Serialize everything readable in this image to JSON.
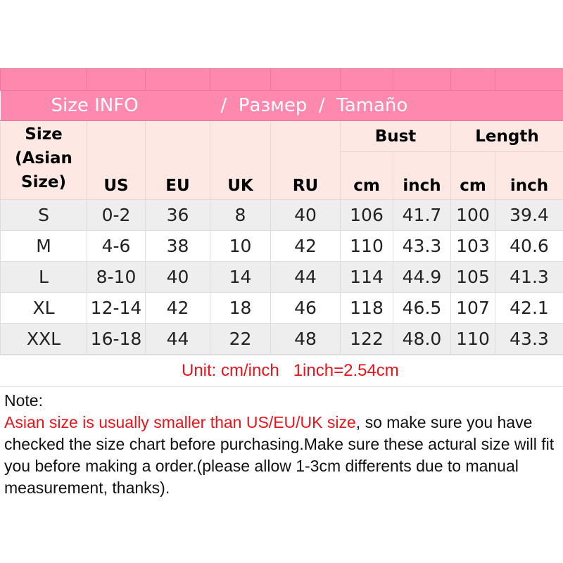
{
  "title": {
    "left": "Size INFO",
    "mid": "/  Размер  /  Tamaño"
  },
  "headers": {
    "size": "Size (Asian Size)",
    "us": "US",
    "eu": "EU",
    "uk": "UK",
    "ru": "RU",
    "bust": "Bust",
    "length": "Length",
    "cm": "cm",
    "inch": "inch"
  },
  "rows": [
    [
      "S",
      "0-2",
      "36",
      "8",
      "40",
      "106",
      "41.7",
      "100",
      "39.4"
    ],
    [
      "M",
      "4-6",
      "38",
      "10",
      "42",
      "110",
      "43.3",
      "103",
      "40.6"
    ],
    [
      "L",
      "8-10",
      "40",
      "14",
      "44",
      "114",
      "44.9",
      "105",
      "41.3"
    ],
    [
      "XL",
      "12-14",
      "42",
      "18",
      "46",
      "118",
      "46.5",
      "107",
      "42.1"
    ],
    [
      "XXL",
      "16-18",
      "44",
      "22",
      "48",
      "122",
      "48.0",
      "110",
      "43.3"
    ]
  ],
  "unit": "Unit: cm/inch   1inch=2.54cm",
  "note": {
    "label": "Note:",
    "warning": "Asian size is usually smaller than US/EU/UK size",
    "rest": ", so make sure you have checked the size chart before purchasing.Make sure these actural size will fit you before making a order.(please allow 1-3cm differents due to manual measurement, thanks)."
  },
  "colors": {
    "pink": "#ff88ae",
    "header_bg": "#fde8e4",
    "warning_red": "#e8141c"
  }
}
